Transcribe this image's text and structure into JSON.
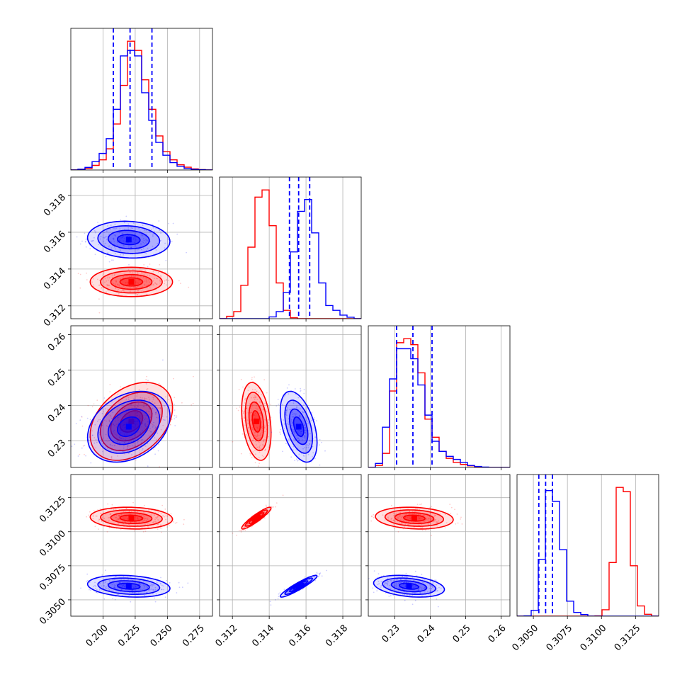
{
  "colors": {
    "series_a": "#ff0000",
    "series_b": "#0000ff",
    "grid": "#b0b0b0",
    "axes": "#000000"
  },
  "chart_data": {
    "type": "corner",
    "grid": true,
    "parameters": [
      {
        "ticks": [
          "0.200",
          "0.225",
          "0.250",
          "0.275"
        ],
        "tick_values": [
          0.2,
          0.225,
          0.25,
          0.275
        ],
        "range": [
          0.175,
          0.285
        ]
      },
      {
        "ticks": [
          "0.312",
          "0.314",
          "0.316",
          "0.318"
        ],
        "tick_values": [
          0.312,
          0.314,
          0.316,
          0.318
        ],
        "range": [
          0.3113,
          0.319
        ]
      },
      {
        "ticks": [
          "0.23",
          "0.24",
          "0.25",
          "0.26"
        ],
        "tick_values": [
          0.23,
          0.24,
          0.25,
          0.26
        ],
        "range": [
          0.2225,
          0.2625
        ]
      },
      {
        "ticks": [
          "0.3050",
          "0.3075",
          "0.3100",
          "0.3125"
        ],
        "tick_values": [
          0.305,
          0.3075,
          0.31,
          0.3125
        ],
        "range": [
          0.3038,
          0.3142
        ]
      }
    ],
    "series": [
      {
        "color": "#ff0000",
        "means": [
          0.222,
          0.3133,
          0.2355,
          0.311
        ],
        "sds": [
          0.016,
          0.0004,
          0.0055,
          0.0004
        ],
        "histograms": [
          {
            "start": 0.175,
            "width": 0.0055,
            "counts": [
              0,
              2,
              8,
              25,
              55,
              115,
              250,
              460,
              700,
              650,
              490,
              330,
              185,
              100,
              55,
              28,
              15,
              6,
              2,
              0
            ]
          },
          {
            "start": 0.3113,
            "width": 0.000385,
            "counts": [
              0,
              20,
              60,
              280,
              600,
              1020,
              1080,
              780,
              300,
              70,
              8,
              0,
              0,
              0,
              0,
              0,
              0,
              0,
              0,
              0
            ]
          },
          {
            "start": 0.2225,
            "width": 0.002,
            "counts": [
              0,
              10,
              70,
              380,
              620,
              640,
              610,
              470,
              240,
              150,
              80,
              45,
              25,
              15,
              8,
              3,
              1,
              0,
              0,
              0
            ]
          },
          {
            "start": 0.3038,
            "width": 0.00052,
            "counts": [
              0,
              0,
              0,
              0,
              0,
              0,
              0,
              0,
              0,
              0,
              0,
              3,
              60,
              500,
              1200,
              1160,
              470,
              95,
              18,
              0
            ]
          }
        ],
        "correlations": [
          [
            0,
            1,
            0.0
          ],
          [
            0,
            2,
            0.35
          ],
          [
            0,
            3,
            -0.1
          ],
          [
            1,
            2,
            -0.3
          ],
          [
            1,
            3,
            0.92
          ],
          [
            2,
            3,
            -0.15
          ]
        ]
      },
      {
        "color": "#0000ff",
        "means": [
          0.22,
          0.3156,
          0.234,
          0.306
        ],
        "sds": [
          0.016,
          0.0005,
          0.005,
          0.0004
        ],
        "histograms": [
          {
            "start": 0.175,
            "width": 0.0055,
            "counts": [
              0,
              4,
              14,
              45,
              90,
              170,
              330,
              620,
              650,
              620,
              420,
              270,
              150,
              80,
              40,
              20,
              8,
              3,
              1,
              0
            ]
          },
          {
            "start": 0.3113,
            "width": 0.000385,
            "counts": [
              0,
              0,
              0,
              0,
              0,
              0,
              0,
              15,
              60,
              220,
              560,
              900,
              1000,
              720,
              300,
              110,
              70,
              30,
              12,
              0
            ]
          },
          {
            "start": 0.2225,
            "width": 0.002,
            "counts": [
              0,
              20,
              200,
              440,
              590,
              590,
              540,
              410,
              260,
              130,
              80,
              55,
              40,
              25,
              10,
              5,
              2,
              0,
              0,
              0
            ]
          },
          {
            "start": 0.3038,
            "width": 0.00052,
            "counts": [
              0,
              3,
              55,
              530,
              1170,
              1070,
              620,
              140,
              35,
              15,
              0,
              0,
              0,
              0,
              0,
              0,
              0,
              0,
              0,
              0
            ]
          }
        ],
        "correlations": [
          [
            0,
            1,
            -0.1
          ],
          [
            0,
            2,
            0.3
          ],
          [
            0,
            3,
            -0.2
          ],
          [
            1,
            2,
            -0.45
          ],
          [
            1,
            3,
            0.93
          ],
          [
            2,
            3,
            -0.3
          ]
        ],
        "quantile_lines": [
          [
            0.208,
            0.221,
            0.238
          ],
          [
            0.3151,
            0.3156,
            0.3162
          ],
          [
            0.2305,
            0.2351,
            0.2405
          ],
          [
            0.3054,
            0.3059,
            0.3064
          ]
        ]
      }
    ]
  }
}
